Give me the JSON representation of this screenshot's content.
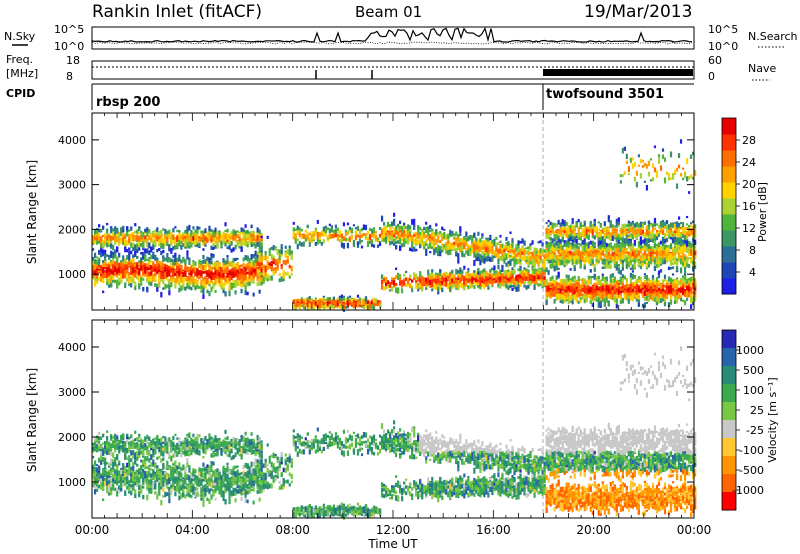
{
  "header": {
    "station": "Rankin Inlet (fitACF)",
    "beam": "Beam 01",
    "date": "19/Mar/2013"
  },
  "nsky_panel": {
    "label_left": "N.Sky",
    "label_right": "N.Search",
    "left_ticks": [
      "10^5",
      "10^0"
    ],
    "right_ticks": [
      "10^5",
      "10^0"
    ]
  },
  "freq_panel": {
    "label_freq": "Freq.",
    "label_unit": "[MHz]",
    "label_right": "Nave",
    "left_ticks": [
      "18",
      "8"
    ],
    "right_ticks": [
      "60",
      "0"
    ]
  },
  "cpid_panel": {
    "label": "CPID",
    "programs": [
      "rbsp 200",
      "twofsound 3501"
    ]
  },
  "colors": {
    "power_scale": [
      "#1e1ee6",
      "#1e46b4",
      "#2d6e96",
      "#3c9664",
      "#50b43c",
      "#aad232",
      "#ffd200",
      "#ffa000",
      "#ff6e00",
      "#ff3200",
      "#e60000"
    ],
    "velocity_scale": [
      "#2828b4",
      "#2864aa",
      "#288c78",
      "#3caa50",
      "#78c846",
      "#c8c8c8",
      "#ffc832",
      "#ff9600",
      "#ff6400",
      "#ff0000"
    ]
  },
  "chart_data": [
    {
      "type": "heatmap",
      "name": "power",
      "ylabel": "Slant Range [km]",
      "yticks": [
        "1000",
        "2000",
        "3000",
        "4000"
      ],
      "ylim": [
        200,
        4600
      ],
      "colorbar_label": "Power [dB]",
      "colorbar_ticks": [
        "4",
        "8",
        "12",
        "16",
        "20",
        "24",
        "28"
      ],
      "xlim_hours": [
        0,
        24
      ]
    },
    {
      "type": "heatmap",
      "name": "velocity",
      "ylabel": "Slant Range [km]",
      "yticks": [
        "1000",
        "2000",
        "3000",
        "4000"
      ],
      "ylim": [
        200,
        4600
      ],
      "colorbar_label": "Velocity [m s⁻¹]",
      "colorbar_ticks": [
        "1000",
        "500",
        "100",
        "25",
        "-25",
        "-100",
        "-500",
        "-1000"
      ],
      "xlim_hours": [
        0,
        24
      ]
    }
  ],
  "xaxis": {
    "ticks": [
      "00:00",
      "04:00",
      "08:00",
      "12:00",
      "16:00",
      "20:00",
      "00:00"
    ],
    "label": "Time UT"
  }
}
